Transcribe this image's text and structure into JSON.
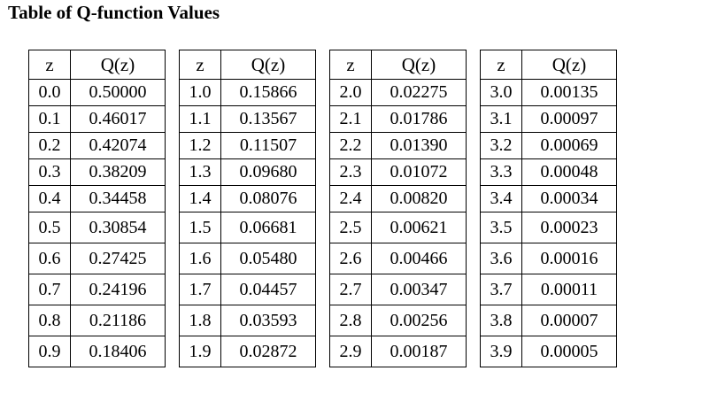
{
  "title": "Table of Q-function Values",
  "header": {
    "z": "z",
    "q": "Q(z)"
  },
  "tables": [
    {
      "rows": [
        {
          "z": "0.0",
          "q": "0.50000"
        },
        {
          "z": "0.1",
          "q": "0.46017"
        },
        {
          "z": "0.2",
          "q": "0.42074"
        },
        {
          "z": "0.3",
          "q": "0.38209"
        },
        {
          "z": "0.4",
          "q": "0.34458"
        },
        {
          "z": "0.5",
          "q": "0.30854"
        },
        {
          "z": "0.6",
          "q": "0.27425"
        },
        {
          "z": "0.7",
          "q": "0.24196"
        },
        {
          "z": "0.8",
          "q": "0.21186"
        },
        {
          "z": "0.9",
          "q": "0.18406"
        }
      ]
    },
    {
      "rows": [
        {
          "z": "1.0",
          "q": "0.15866"
        },
        {
          "z": "1.1",
          "q": "0.13567"
        },
        {
          "z": "1.2",
          "q": "0.11507"
        },
        {
          "z": "1.3",
          "q": "0.09680"
        },
        {
          "z": "1.4",
          "q": "0.08076"
        },
        {
          "z": "1.5",
          "q": "0.06681"
        },
        {
          "z": "1.6",
          "q": "0.05480"
        },
        {
          "z": "1.7",
          "q": "0.04457"
        },
        {
          "z": "1.8",
          "q": "0.03593"
        },
        {
          "z": "1.9",
          "q": "0.02872"
        }
      ]
    },
    {
      "rows": [
        {
          "z": "2.0",
          "q": "0.02275"
        },
        {
          "z": "2.1",
          "q": "0.01786"
        },
        {
          "z": "2.2",
          "q": "0.01390"
        },
        {
          "z": "2.3",
          "q": "0.01072"
        },
        {
          "z": "2.4",
          "q": "0.00820"
        },
        {
          "z": "2.5",
          "q": "0.00621"
        },
        {
          "z": "2.6",
          "q": "0.00466"
        },
        {
          "z": "2.7",
          "q": "0.00347"
        },
        {
          "z": "2.8",
          "q": "0.00256"
        },
        {
          "z": "2.9",
          "q": "0.00187"
        }
      ]
    },
    {
      "rows": [
        {
          "z": "3.0",
          "q": "0.00135"
        },
        {
          "z": "3.1",
          "q": "0.00097"
        },
        {
          "z": "3.2",
          "q": "0.00069"
        },
        {
          "z": "3.3",
          "q": "0.00048"
        },
        {
          "z": "3.4",
          "q": "0.00034"
        },
        {
          "z": "3.5",
          "q": "0.00023"
        },
        {
          "z": "3.6",
          "q": "0.00016"
        },
        {
          "z": "3.7",
          "q": "0.00011"
        },
        {
          "z": "3.8",
          "q": "0.00007"
        },
        {
          "z": "3.9",
          "q": "0.00005"
        }
      ]
    }
  ]
}
